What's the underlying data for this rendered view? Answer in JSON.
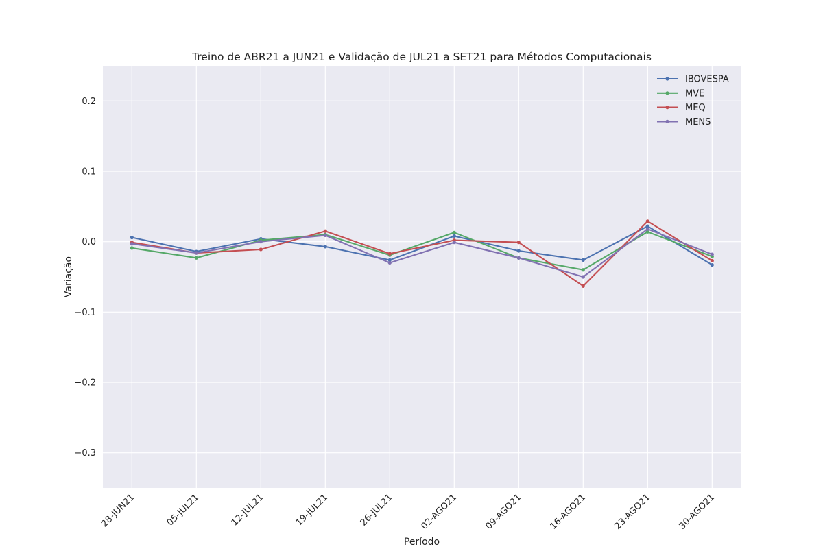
{
  "chart_data": {
    "type": "line",
    "title": "Treino de ABR21 a JUN21 e Validação de JUL21 a SET21 para Métodos Computacionais",
    "xlabel": "Período",
    "ylabel": "Variação",
    "ylim": [
      -0.35,
      0.25
    ],
    "yticks": [
      0.2,
      0.1,
      0.0,
      -0.1,
      -0.2,
      -0.3
    ],
    "ytick_labels": [
      "0.2",
      "0.1",
      "0.0",
      "−0.1",
      "−0.2",
      "−0.3"
    ],
    "categories": [
      "28-JUN21",
      "05-JUL21",
      "12-JUL21",
      "19-JUL21",
      "26-JUL21",
      "02-AGO21",
      "09-AGO21",
      "16-AGO21",
      "23-AGO21",
      "30-AGO21"
    ],
    "grid": true,
    "legend_position": "top-right",
    "series": [
      {
        "name": "IBOVESPA",
        "color": "#4c72b0",
        "values": [
          0.006,
          -0.014,
          0.004,
          -0.007,
          -0.026,
          0.008,
          -0.013,
          -0.026,
          0.022,
          -0.033
        ]
      },
      {
        "name": "MVE",
        "color": "#55a868",
        "values": [
          -0.009,
          -0.023,
          0.002,
          0.01,
          -0.019,
          0.013,
          -0.023,
          -0.04,
          0.014,
          -0.021
        ]
      },
      {
        "name": "MEQ",
        "color": "#c44e52",
        "values": [
          -0.001,
          -0.016,
          -0.011,
          0.015,
          -0.017,
          0.002,
          -0.001,
          -0.063,
          0.029,
          -0.027
        ]
      },
      {
        "name": "MENS",
        "color": "#8172b2",
        "values": [
          -0.003,
          -0.016,
          0.0,
          0.009,
          -0.03,
          -0.001,
          -0.023,
          -0.05,
          0.018,
          -0.018
        ]
      }
    ]
  }
}
